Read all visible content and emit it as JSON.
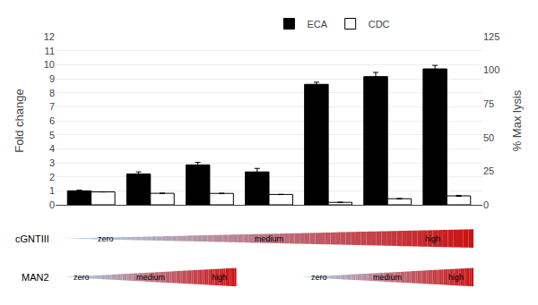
{
  "chart_data": {
    "type": "bar",
    "categories": [
      null,
      null,
      null,
      null,
      null,
      null,
      null
    ],
    "series": [
      {
        "name": "ECA",
        "color": "#000000",
        "values": [
          1.0,
          2.2,
          2.85,
          2.35,
          8.6,
          9.15,
          9.7
        ],
        "errors": [
          0.05,
          0.15,
          0.18,
          0.25,
          0.15,
          0.3,
          0.25
        ]
      },
      {
        "name": "CDC",
        "color": "#ffffff",
        "edge_color": "#000000",
        "axis": "y2",
        "values": [
          9.6,
          8.55,
          8.5,
          7.7,
          1.85,
          4.55,
          6.65
        ],
        "errors": [
          0.05,
          0.07,
          0.1,
          0.1,
          0.05,
          0.12,
          0.35
        ]
      }
    ],
    "ylabel": "Fold change",
    "y2label": "% Max lysis",
    "ylim": [
      0,
      12
    ],
    "yticks": [
      0,
      1,
      2,
      3,
      4,
      5,
      6,
      7,
      8,
      9,
      10,
      11,
      12
    ],
    "y2lim": [
      0,
      125
    ],
    "y2ticks": [
      0,
      25,
      50,
      75,
      100,
      125
    ],
    "grid": true,
    "legend": "top",
    "tick_labels": "y",
    "annotations": [
      {
        "text": "cGNTIII",
        "gradients": [
          {
            "from": 0,
            "to": 6,
            "texts": [
              "zero",
              "medium",
              "high"
            ],
            "colors": [
              "#aad4f0",
              "#cc1111"
            ]
          }
        ]
      },
      {
        "text": "MAN2",
        "gradients": [
          {
            "from": 0,
            "to": 2,
            "texts": [
              "zero",
              "medium",
              "high"
            ],
            "colors": [
              "#aad4f0",
              "#cc1111"
            ]
          },
          {
            "from": 4,
            "to": 6,
            "texts": [
              "zero",
              "medium",
              "high"
            ],
            "colors": [
              "#aad4f0",
              "#cc1111"
            ]
          }
        ]
      }
    ]
  }
}
